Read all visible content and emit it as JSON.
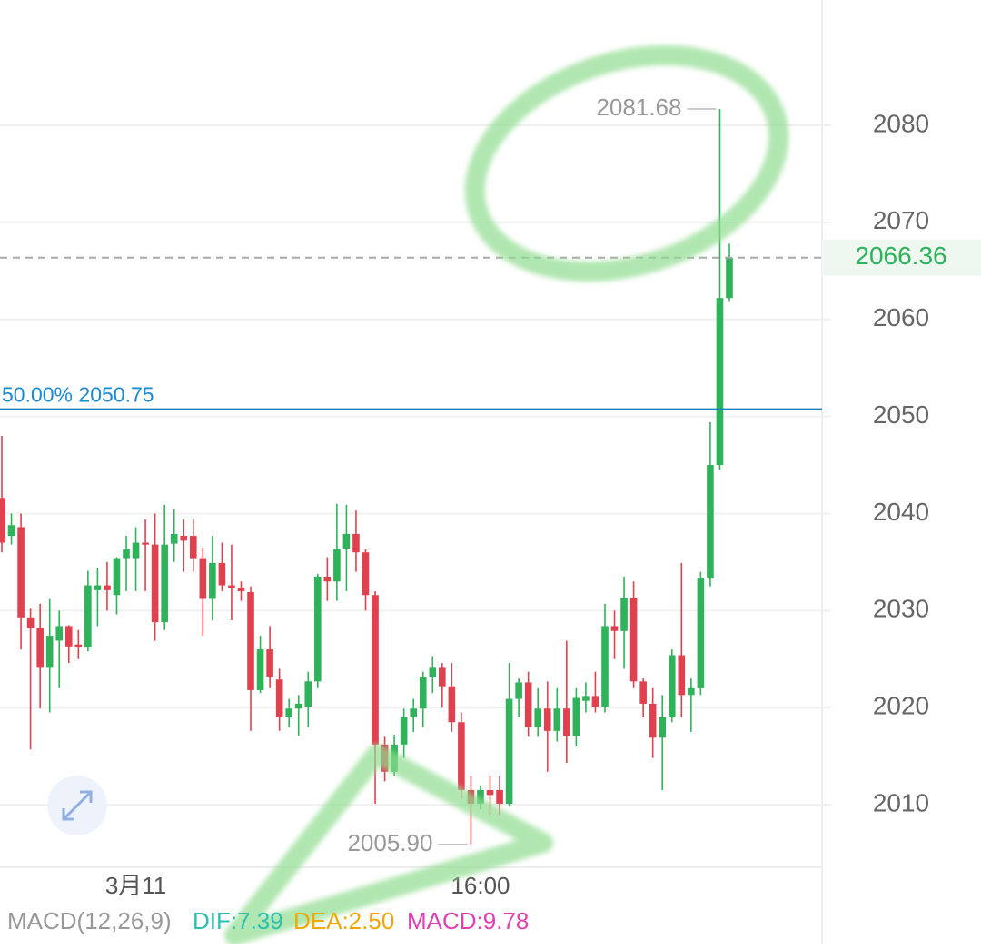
{
  "chart_data": {
    "type": "candlestick",
    "categories": [
      null,
      null,
      null,
      null,
      null,
      null,
      null,
      null,
      null,
      null,
      null,
      null,
      null,
      null,
      "3月11",
      null,
      null,
      null,
      null,
      null,
      null,
      null,
      null,
      null,
      null,
      null,
      null,
      null,
      null,
      null,
      null,
      null,
      null,
      null,
      null,
      null,
      null,
      null,
      null,
      null,
      null,
      null,
      null,
      null,
      null,
      null,
      null,
      null,
      null,
      null,
      "16:00",
      null,
      null,
      null,
      null,
      null,
      null,
      null,
      null,
      null,
      null,
      null,
      null,
      null,
      null,
      null,
      null,
      null,
      null,
      null,
      null,
      null,
      null,
      null,
      null,
      null,
      null
    ],
    "open": [
      2041.6,
      2037.7,
      2038.6,
      2029.3,
      2028.2,
      2024.1,
      2026.9,
      2028.4,
      2026.5,
      2026.2,
      2032.1,
      2032.6,
      2031.6,
      2035.4,
      2035.4,
      2037,
      2036.8,
      2028.8,
      2036.9,
      2037.7,
      2037.7,
      2035.4,
      2031.2,
      2034.9,
      2032.6,
      2032.3,
      2031.9,
      2021.8,
      2026,
      2022.9,
      2019,
      2019.9,
      2020.1,
      2022.7,
      2033.5,
      2033,
      2036.3,
      2037.9,
      2036,
      2031.6,
      2016.2,
      2013.4,
      2016.2,
      2019,
      2019.9,
      2023.2,
      2024.1,
      2022.2,
      2018.5,
      2011.5,
      2010.1,
      2011.5,
      2011.5,
      2010.1,
      2020.9,
      2022.6,
      2018,
      2019.9,
      2017.6,
      2019.9,
      2017.1,
      2020.7,
      2021.2,
      2020.1,
      2028.4,
      2027.9,
      2031.3,
      2022.7,
      2020.4,
      2016.9,
      2019,
      2025.4,
      2021.3,
      2022,
      2033.3,
      2045,
      2062.2
    ],
    "high": [
      2048,
      2040,
      2040,
      2030.2,
      2030.7,
      2031.2,
      2030,
      2028.5,
      2028,
      2034.1,
      2034.4,
      2035,
      2035.5,
      2037.7,
      2038.6,
      2039.4,
      2040,
      2040.9,
      2040.5,
      2039.4,
      2039.4,
      2036.5,
      2037.7,
      2037,
      2036.8,
      2033,
      2032.5,
      2027.4,
      2028.4,
      2024,
      2020.9,
      2021.3,
      2023.7,
      2033.8,
      2035.5,
      2041,
      2040.9,
      2040.3,
      2036.3,
      2032,
      2017,
      2017.2,
      2019.9,
      2020.9,
      2023.7,
      2025.3,
      2024.6,
      2024.6,
      2019.5,
      2013,
      2012,
      2013,
      2013,
      2024.6,
      2023,
      2023.7,
      2022,
      2022.7,
      2022,
      2026.9,
      2022,
      2022.6,
      2023.7,
      2030.7,
      2030,
      2033.5,
      2033,
      2023,
      2022,
      2021.3,
      2026,
      2034.9,
      2023,
      2034,
      2049.4,
      2081.68,
      2067.8
    ],
    "low": [
      2036,
      2036.8,
      2026,
      2015.7,
      2019.9,
      2019.5,
      2022,
      2024.6,
      2025,
      2025.8,
      2028.4,
      2030,
      2029.6,
      2032,
      2032,
      2032,
      2026.9,
      2028,
      2035,
      2034,
      2034,
      2027.4,
      2029,
      2032,
      2029,
      2031,
      2017.6,
      2021.5,
      2022,
      2017.6,
      2018,
      2017.1,
      2018,
      2022,
      2031,
      2031,
      2032,
      2034,
      2030,
      2010.1,
      2012.4,
      2013,
      2014.8,
      2017.5,
      2018,
      2021.5,
      2020,
      2017.5,
      2010.6,
      2005.9,
      2009.5,
      2009,
      2008.9,
      2009.8,
      2019,
      2017,
      2017,
      2013.4,
      2016.5,
      2014.3,
      2016,
      2019.5,
      2019.5,
      2019.5,
      2025,
      2024,
      2022,
      2019,
      2014.8,
      2011.5,
      2018.5,
      2019,
      2017.5,
      2021.3,
      2032.5,
      2044.5,
      2061.9
    ],
    "close": [
      2037.0,
      2038.8,
      2029.3,
      2028.2,
      2024.1,
      2027.4,
      2028.4,
      2026.3,
      2026.2,
      2032.6,
      2032.6,
      2032.1,
      2035.4,
      2036.3,
      2037,
      2036.8,
      2028.8,
      2036.8,
      2037.9,
      2037.2,
      2035.4,
      2031.2,
      2034.9,
      2032.6,
      2032.3,
      2032,
      2021.8,
      2026,
      2023.2,
      2019,
      2019.9,
      2020.4,
      2022.7,
      2033.5,
      2033,
      2036.3,
      2037.9,
      2036,
      2031.6,
      2016.2,
      2013.4,
      2016.2,
      2019,
      2019.9,
      2023.2,
      2024.1,
      2022.2,
      2018.5,
      2011.5,
      2010.1,
      2011.5,
      2011,
      2010.1,
      2020.9,
      2022.6,
      2018,
      2019.9,
      2017.6,
      2019.9,
      2017.1,
      2021,
      2021.2,
      2020.1,
      2028.4,
      2027.9,
      2031.3,
      2022.7,
      2020.4,
      2016.9,
      2019,
      2025.4,
      2021.3,
      2022,
      2033.3,
      2045,
      2062.2,
      2066.36
    ],
    "up_color": "#2fb35a",
    "down_color": "#e0414f",
    "ylim": [
      2003.55,
      2092.91
    ],
    "yticks": [
      2010,
      2020,
      2030,
      2040,
      2050,
      2060,
      2070,
      2080
    ],
    "grid": true,
    "max_label": {
      "value": 2081.68,
      "label": "2081.68"
    },
    "min_label": {
      "value": 2005.9,
      "label": "2005.90"
    },
    "last_price": {
      "value": 2066.36,
      "label": "2066.36"
    },
    "fib_line": {
      "value": 2050.75,
      "label": "50.00% 2050.75"
    },
    "indicator": {
      "name": "MACD(12,26,9)",
      "dif": "DIF:7.39",
      "dea": "DEA:2.50",
      "macd": "MACD:9.78"
    }
  }
}
